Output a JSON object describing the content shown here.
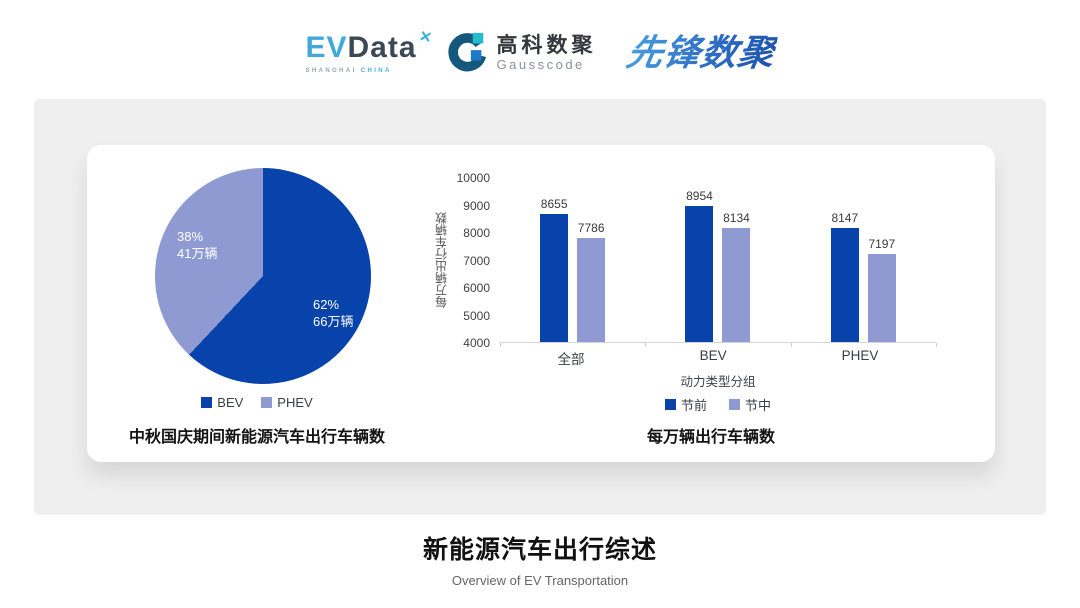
{
  "header": {
    "evdata": {
      "ev": "EV",
      "data": "Data",
      "xmark": "✕",
      "sub_left": "SHANGHAI",
      "sub_right": "CHINA"
    },
    "gausscode": {
      "cn": "高科数聚",
      "en": "Gausscode"
    },
    "xianfeng": "先锋数聚"
  },
  "footer": {
    "title": "新能源汽车出行综述",
    "subtitle": "Overview of EV Transportation"
  },
  "colors": {
    "series_primary": "#0743aa",
    "series_secondary": "#8f9ad3",
    "panel_gray": "#efefef"
  },
  "chart_data": [
    {
      "type": "pie",
      "title": "中秋国庆期间新能源汽车出行车辆数",
      "legend_position": "bottom",
      "start_angle_deg": 0,
      "slices": [
        {
          "label": "BEV",
          "percent": 62,
          "pct_label": "62%",
          "value_label": "66万辆",
          "color": "#0743aa"
        },
        {
          "label": "PHEV",
          "percent": 38,
          "pct_label": "38%",
          "value_label": "41万辆",
          "color": "#8f9ad3"
        }
      ]
    },
    {
      "type": "bar",
      "title": "每万辆出行车辆数",
      "xlabel": "动力类型分组",
      "ylabel": "每万辆出行车辆数",
      "categories": [
        "全部",
        "BEV",
        "PHEV"
      ],
      "series": [
        {
          "name": "节前",
          "values": [
            8655,
            8954,
            8147
          ],
          "color": "#0743aa"
        },
        {
          "name": "节中",
          "values": [
            7786,
            8134,
            7197
          ],
          "color": "#8f9ad3"
        }
      ],
      "ylim": [
        4000,
        10000
      ],
      "ytick_step": 1000,
      "grid": false,
      "legend_position": "bottom"
    }
  ]
}
